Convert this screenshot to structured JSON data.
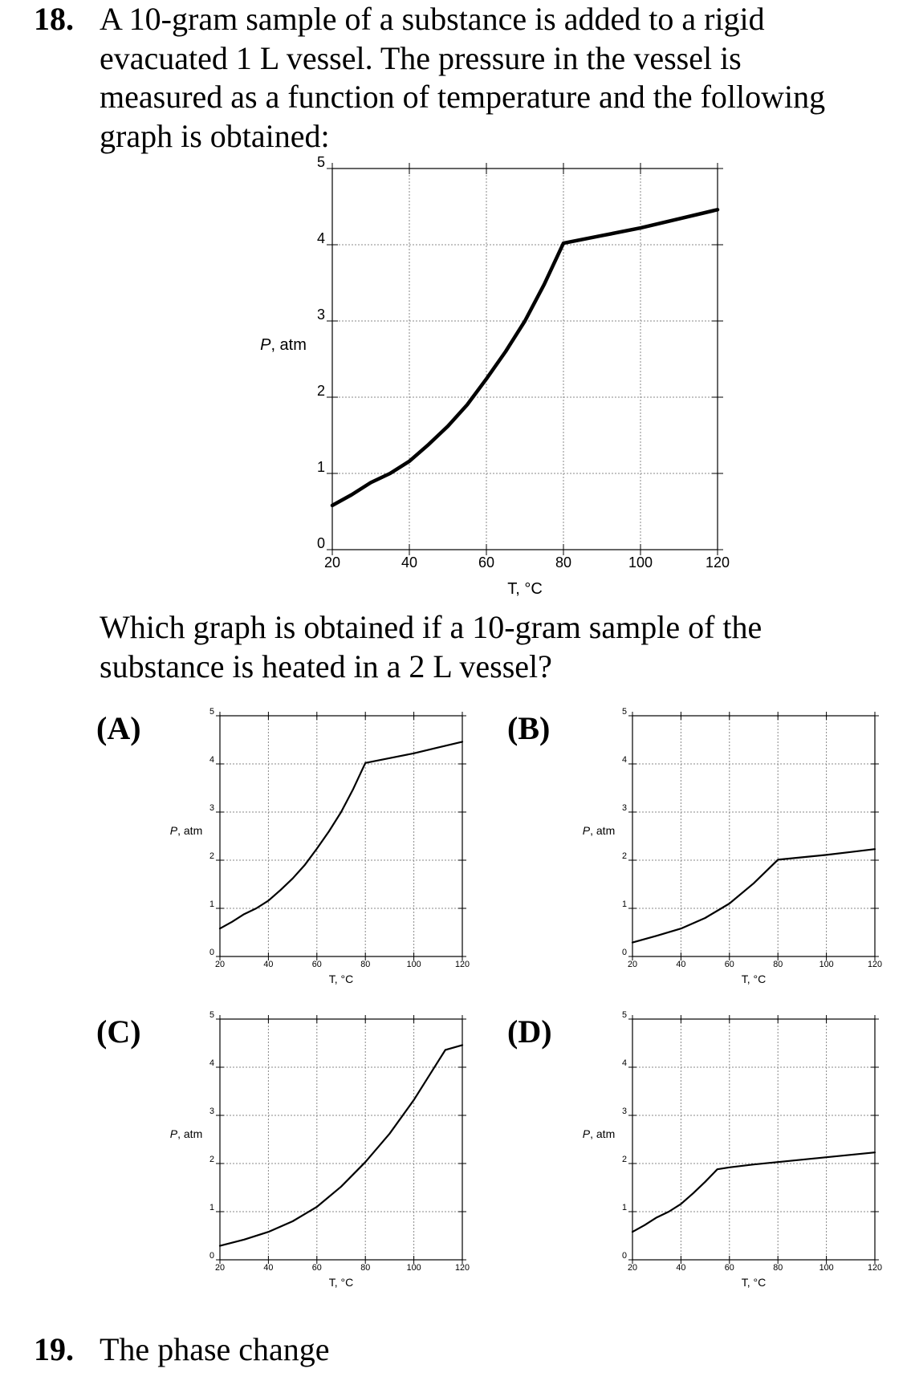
{
  "q18": {
    "number": "18.",
    "stem_lines": [
      "A 10-gram sample of a substance is added to a rigid",
      "evacuated 1 L vessel.  The pressure in the vessel is",
      "measured as a function of temperature and the following",
      "graph is obtained:"
    ],
    "question_lines": [
      "Which graph is obtained if a 10-gram sample of the",
      "substance is heated in a 2 L vessel?"
    ],
    "options": [
      {
        "label": "(A)"
      },
      {
        "label": "(B)"
      },
      {
        "label": "(C)"
      },
      {
        "label": "(D)"
      }
    ]
  },
  "q19": {
    "number": "19.",
    "text": "The phase change"
  },
  "chart_data": [
    {
      "id": "main",
      "type": "line",
      "xlabel": "T, °C",
      "ylabel": "P, atm",
      "xlim": [
        20,
        120
      ],
      "ylim": [
        0,
        5
      ],
      "xticks": [
        "20",
        "40",
        "60",
        "80",
        "100",
        "120"
      ],
      "yticks": [
        "0",
        "1",
        "2",
        "3",
        "4",
        "5"
      ],
      "grid": true,
      "series": [
        {
          "x": [
            20,
            25,
            30,
            35,
            40,
            45,
            50,
            55,
            60,
            65,
            70,
            75,
            80,
            90,
            100,
            110,
            120
          ],
          "y": [
            0.58,
            0.72,
            0.88,
            1.0,
            1.16,
            1.38,
            1.62,
            1.9,
            2.24,
            2.6,
            3.0,
            3.48,
            4.02,
            4.12,
            4.22,
            4.34,
            4.46
          ]
        }
      ]
    },
    {
      "id": "A",
      "type": "line",
      "xlabel": "T, °C",
      "ylabel": "P, atm",
      "xlim": [
        20,
        120
      ],
      "ylim": [
        0,
        5
      ],
      "xticks": [
        "20",
        "40",
        "60",
        "80",
        "100",
        "120"
      ],
      "yticks": [
        "0",
        "1",
        "2",
        "3",
        "4",
        "5"
      ],
      "grid": true,
      "series": [
        {
          "x": [
            20,
            25,
            30,
            35,
            40,
            45,
            50,
            55,
            60,
            65,
            70,
            75,
            80,
            90,
            100,
            110,
            120
          ],
          "y": [
            0.58,
            0.72,
            0.88,
            1.0,
            1.16,
            1.38,
            1.62,
            1.9,
            2.24,
            2.6,
            3.0,
            3.48,
            4.02,
            4.12,
            4.22,
            4.34,
            4.46
          ]
        }
      ]
    },
    {
      "id": "B",
      "type": "line",
      "xlabel": "T, °C",
      "ylabel": "P, atm",
      "xlim": [
        20,
        120
      ],
      "ylim": [
        0,
        5
      ],
      "xticks": [
        "20",
        "40",
        "60",
        "80",
        "100",
        "120"
      ],
      "yticks": [
        "0",
        "1",
        "2",
        "3",
        "4",
        "5"
      ],
      "grid": true,
      "series": [
        {
          "x": [
            20,
            30,
            40,
            50,
            60,
            70,
            80,
            90,
            100,
            110,
            120
          ],
          "y": [
            0.29,
            0.43,
            0.58,
            0.8,
            1.1,
            1.52,
            2.01,
            2.06,
            2.11,
            2.17,
            2.23
          ]
        }
      ]
    },
    {
      "id": "C",
      "type": "line",
      "xlabel": "T, °C",
      "ylabel": "P, atm",
      "xlim": [
        20,
        120
      ],
      "ylim": [
        0,
        5
      ],
      "xticks": [
        "20",
        "40",
        "60",
        "80",
        "100",
        "120"
      ],
      "yticks": [
        "0",
        "1",
        "2",
        "3",
        "4",
        "5"
      ],
      "grid": true,
      "series": [
        {
          "x": [
            20,
            30,
            40,
            50,
            60,
            70,
            80,
            90,
            100,
            110,
            113,
            120
          ],
          "y": [
            0.29,
            0.42,
            0.58,
            0.8,
            1.1,
            1.52,
            2.03,
            2.62,
            3.32,
            4.12,
            4.36,
            4.46
          ]
        }
      ]
    },
    {
      "id": "D",
      "type": "line",
      "xlabel": "T, °C",
      "ylabel": "P, atm",
      "xlim": [
        20,
        120
      ],
      "ylim": [
        0,
        5
      ],
      "xticks": [
        "20",
        "40",
        "60",
        "80",
        "100",
        "120"
      ],
      "yticks": [
        "0",
        "1",
        "2",
        "3",
        "4",
        "5"
      ],
      "grid": true,
      "series": [
        {
          "x": [
            20,
            25,
            30,
            35,
            40,
            45,
            50,
            55,
            60,
            70,
            80,
            90,
            100,
            110,
            120
          ],
          "y": [
            0.58,
            0.72,
            0.88,
            1.0,
            1.16,
            1.38,
            1.62,
            1.88,
            1.92,
            1.98,
            2.03,
            2.08,
            2.13,
            2.18,
            2.23
          ]
        }
      ]
    }
  ]
}
